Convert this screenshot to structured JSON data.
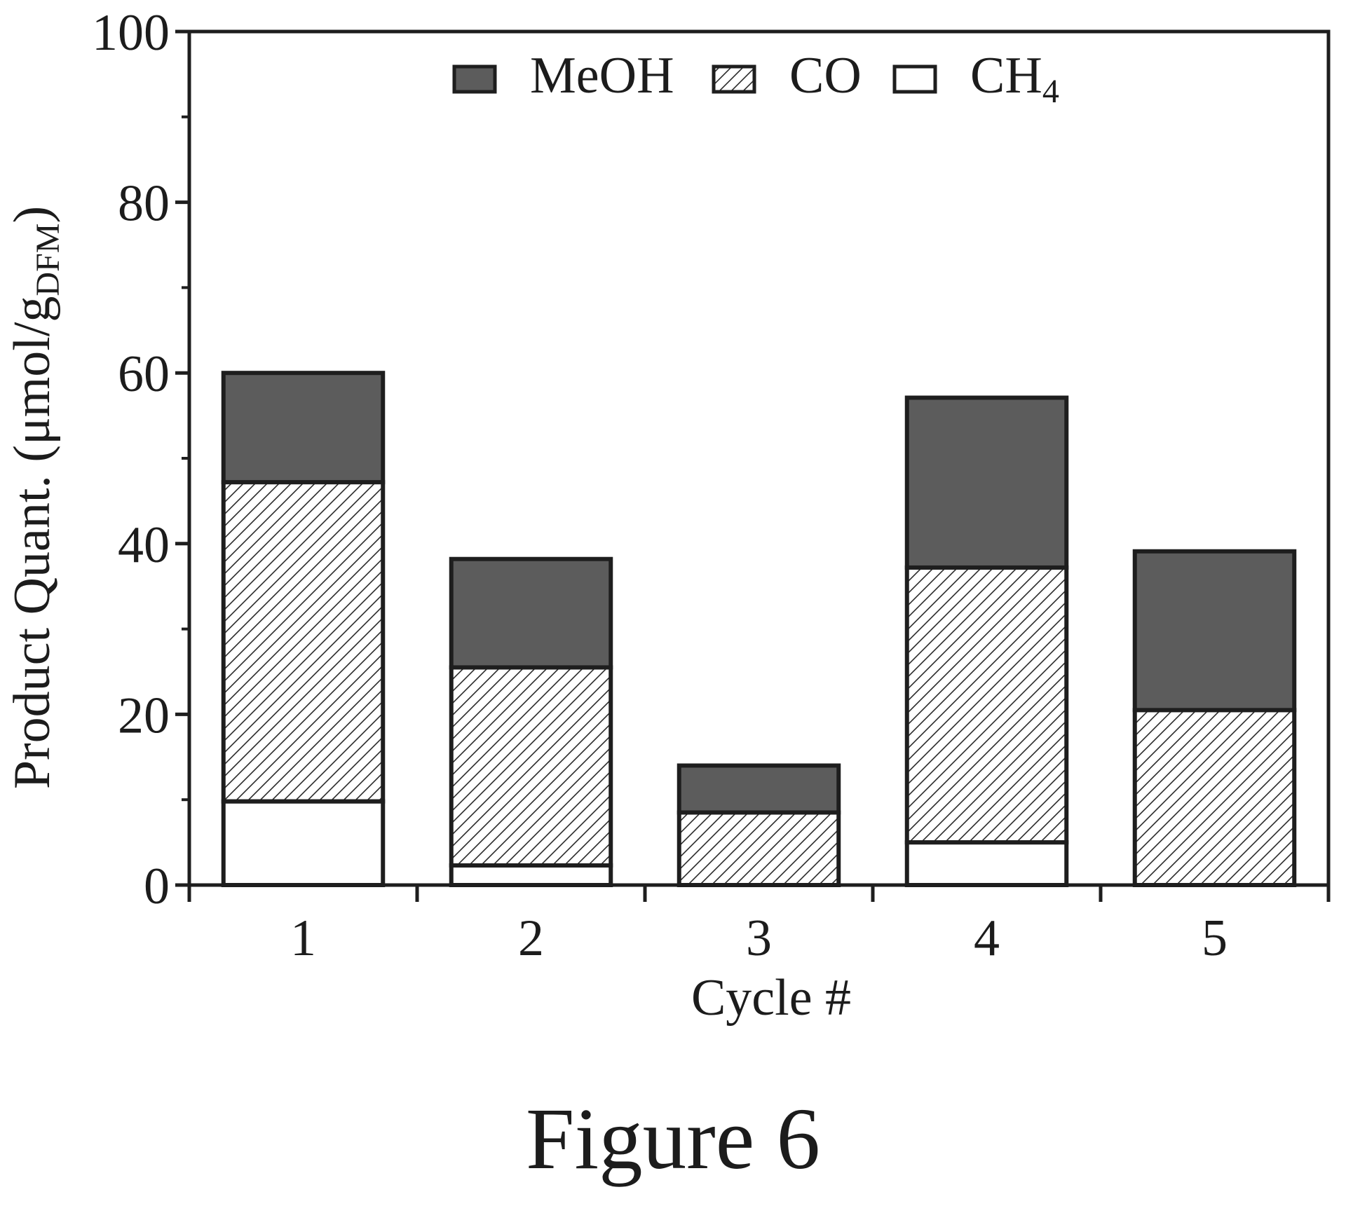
{
  "chart_data": {
    "type": "bar",
    "stacked": true,
    "categories": [
      "1",
      "2",
      "3",
      "4",
      "5"
    ],
    "series": [
      {
        "name": "CH",
        "name_subscript": "4",
        "values": [
          9.8,
          2.3,
          0,
          5,
          0
        ],
        "fill": "none"
      },
      {
        "name": "CO",
        "values": [
          37.4,
          23.2,
          8.5,
          32.2,
          20.5
        ],
        "fill": "hatch"
      },
      {
        "name": "MeOH",
        "values": [
          12.8,
          12.7,
          5.5,
          19.9,
          18.6
        ],
        "fill": "dark"
      }
    ],
    "xlabel": "Cycle #",
    "ylabel": "Product Quant. (μmol/g",
    "ylabel_subscript": "DFM",
    "ylabel_suffix": ")",
    "ylim": [
      0,
      100
    ],
    "yticks": [
      "0",
      "20",
      "40",
      "60",
      "80",
      "100"
    ],
    "legend_position": "top-center",
    "grid": false
  },
  "caption": "Figure 6",
  "colors": {
    "dark": "#5c5c5c",
    "line": "#1e1e1e"
  }
}
